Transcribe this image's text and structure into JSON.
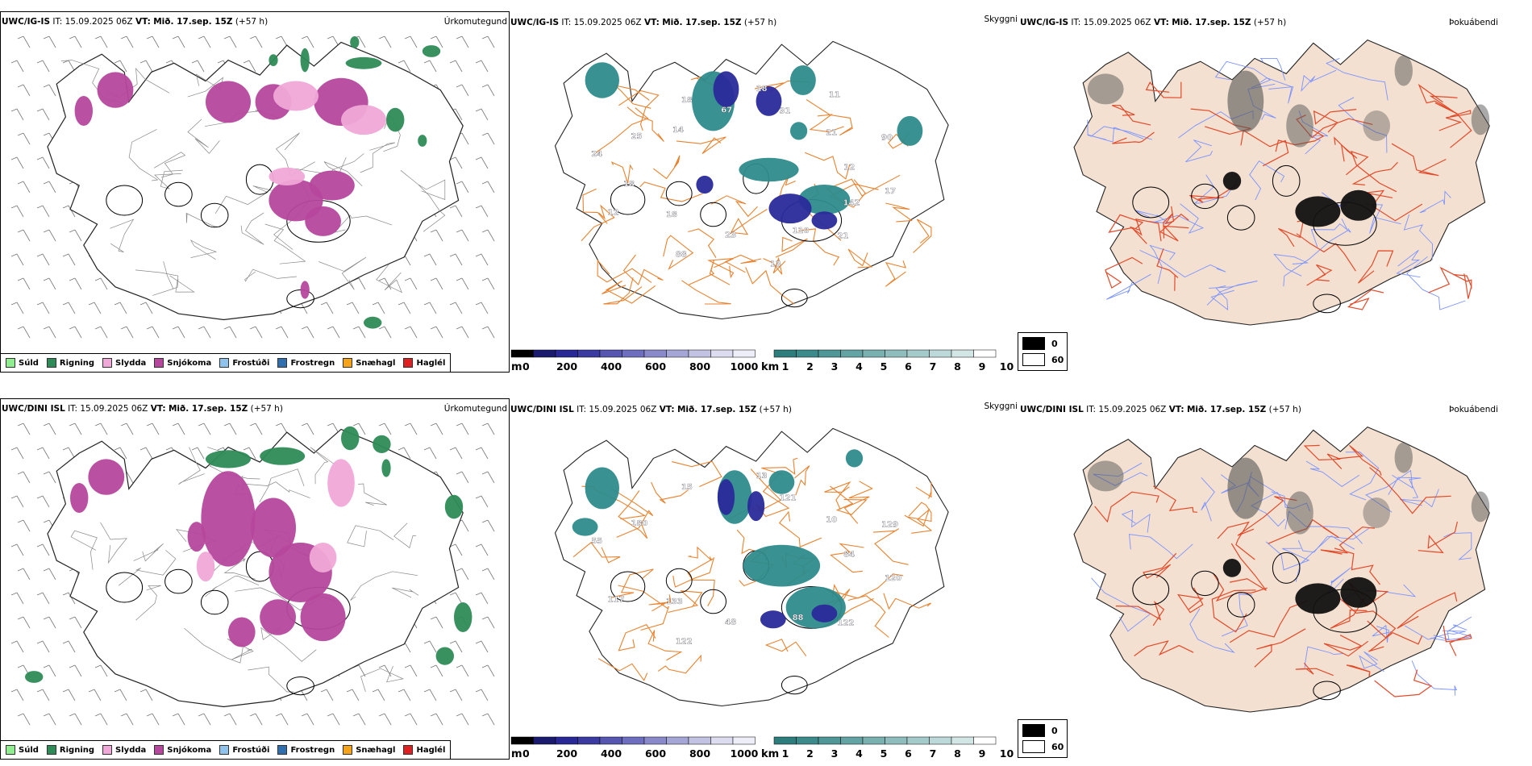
{
  "rows": [
    {
      "p1": {
        "model": "UWC/IG-IS",
        "it": "IT: 15.09.2025 06Z",
        "vt_label": "VT:",
        "vt": "Mið. 17.sep. 15Z",
        "lead": "(+57 h)",
        "right": "Úrkomutegund"
      },
      "p2": {
        "model": "UWC/IG-IS",
        "it": "IT: 15.09.2025 06Z",
        "vt_label": "VT:",
        "vt": "Mið. 17.sep. 15Z",
        "lead": "(+57 h)",
        "right": "Skyggni"
      },
      "p3": {
        "model": "UWC/IG-IS",
        "it": "IT: 15.09.2025 06Z",
        "vt_label": "VT:",
        "vt": "Mið. 17.sep. 15Z",
        "lead": "(+57 h)",
        "right": "Þokuábendi"
      },
      "numbers": [
        "12",
        "18",
        "18",
        "21",
        "24",
        "21",
        "23",
        "18",
        "17",
        "12",
        "31",
        "110",
        "25",
        "90",
        "88",
        "67",
        "142",
        "18",
        "11",
        "13",
        "14"
      ]
    },
    {
      "p1": {
        "model": "UWC/DINI ISL",
        "it": "IT: 15.09.2025 06Z",
        "vt_label": "VT:",
        "vt": "Mið. 17.sep. 15Z",
        "lead": "(+57 h)",
        "right": "Úrkomutegund"
      },
      "p2": {
        "model": "UWC/DINI ISL",
        "it": "IT: 15.09.2025 06Z",
        "vt_label": "VT:",
        "vt": "Mið. 17.sep. 15Z",
        "lead": "(+57 h)",
        "right": "Skyggni"
      },
      "p3": {
        "model": "UWC/DINI ISL",
        "it": "IT: 15.09.2025 06Z",
        "vt_label": "VT:",
        "vt": "Mið. 17.sep. 15Z",
        "lead": "(+57 h)",
        "right": "Þokuábendi"
      },
      "numbers": [
        "84",
        "133",
        "13",
        "122",
        "55",
        "10",
        "48",
        "15",
        "120",
        "117",
        "121",
        "88",
        "180",
        "129",
        "122"
      ]
    }
  ],
  "precip_legend": [
    {
      "label": "Súld",
      "color": "#90ee90"
    },
    {
      "label": "Rigning",
      "color": "#2e8b57"
    },
    {
      "label": "Slydda",
      "color": "#f0a8d8"
    },
    {
      "label": "Snjókoma",
      "color": "#b5479c"
    },
    {
      "label": "Frostúði",
      "color": "#8fc3ec"
    },
    {
      "label": "Frostregn",
      "color": "#2f6fb0"
    },
    {
      "label": "Snæhagl",
      "color": "#f5a31a"
    },
    {
      "label": "Haglél",
      "color": "#e02020"
    }
  ],
  "elevation_bar": {
    "unit": "m",
    "ticks": [
      "0",
      "200",
      "400",
      "600",
      "800",
      "1000"
    ]
  },
  "visibility_bar": {
    "unit": "km",
    "ticks": [
      "1",
      "2",
      "3",
      "4",
      "5",
      "6",
      "7",
      "8",
      "9",
      "10"
    ]
  },
  "fog_legend": {
    "ticks": [
      "0",
      "60"
    ]
  },
  "colors": {
    "snow": "#b5479c",
    "sleet": "#f0a8d8",
    "rain": "#2e8b57",
    "road": "#e9822f",
    "land": "#f3e0d0",
    "river": "#7b93ff",
    "road_red": "#e24a2a",
    "vis_dark": "#2a2a9a",
    "vis_teal": "#2e8b8b"
  }
}
